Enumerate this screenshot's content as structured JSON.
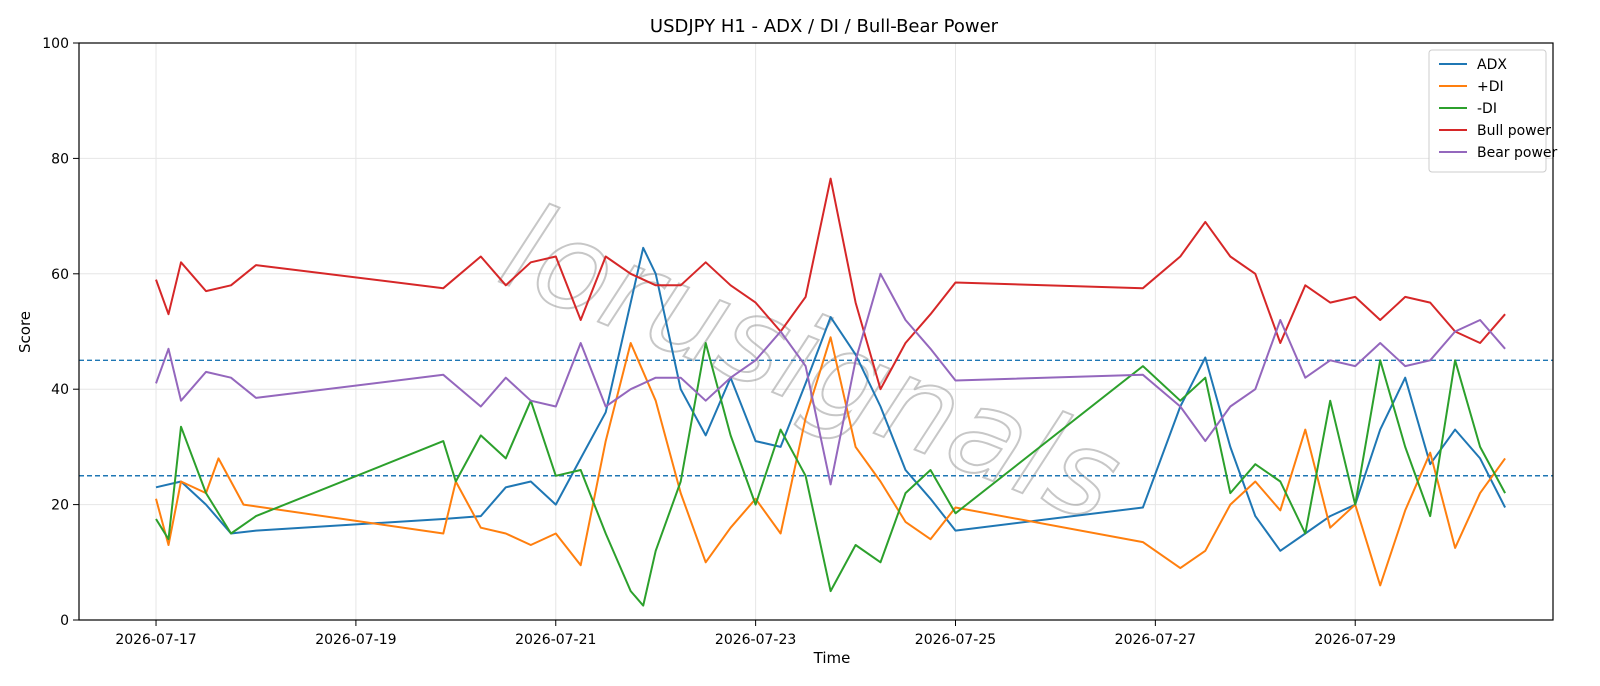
{
  "chart_data": {
    "type": "line",
    "title": "USDJPY H1 - ADX / DI / Bull-Bear Power",
    "xlabel": "Time",
    "ylabel": "Score",
    "ylim": [
      0,
      100
    ],
    "xlim": [
      "2026-07-16T05:30",
      "2026-07-30T23:30"
    ],
    "x_ticks": [
      "2026-07-17",
      "2026-07-19",
      "2026-07-21",
      "2026-07-23",
      "2026-07-25",
      "2026-07-27",
      "2026-07-29"
    ],
    "y_ticks": [
      0,
      20,
      40,
      60,
      80,
      100
    ],
    "grid": true,
    "legend": "top-right",
    "reference_lines": [
      45,
      25
    ],
    "watermark": "lorusignals",
    "series": [
      {
        "name": "ADX",
        "color": "#1f77b4",
        "points": [
          [
            "2026-07-17T00:00",
            23
          ],
          [
            "2026-07-17T06:00",
            24
          ],
          [
            "2026-07-17T12:00",
            20
          ],
          [
            "2026-07-17T18:00",
            15
          ],
          [
            "2026-07-18T00:00",
            15.5
          ],
          [
            "2026-07-19T21:00",
            17.5
          ],
          [
            "2026-07-20T06:00",
            18
          ],
          [
            "2026-07-20T12:00",
            23
          ],
          [
            "2026-07-20T18:00",
            24
          ],
          [
            "2026-07-21T00:00",
            20
          ],
          [
            "2026-07-21T06:00",
            28
          ],
          [
            "2026-07-21T12:00",
            36
          ],
          [
            "2026-07-21T18:00",
            55
          ],
          [
            "2026-07-21T21:00",
            64.5
          ],
          [
            "2026-07-22T00:00",
            60
          ],
          [
            "2026-07-22T06:00",
            40
          ],
          [
            "2026-07-22T12:00",
            32
          ],
          [
            "2026-07-22T18:00",
            42
          ],
          [
            "2026-07-23T00:00",
            31
          ],
          [
            "2026-07-23T06:00",
            30
          ],
          [
            "2026-07-23T12:00",
            41
          ],
          [
            "2026-07-23T18:00",
            52.5
          ],
          [
            "2026-07-24T00:00",
            46
          ],
          [
            "2026-07-24T06:00",
            37
          ],
          [
            "2026-07-24T12:00",
            26
          ],
          [
            "2026-07-24T18:00",
            21
          ],
          [
            "2026-07-25T00:00",
            15.5
          ],
          [
            "2026-07-26T21:00",
            19.5
          ],
          [
            "2026-07-27T06:00",
            37
          ],
          [
            "2026-07-27T12:00",
            45.5
          ],
          [
            "2026-07-27T18:00",
            30
          ],
          [
            "2026-07-28T00:00",
            18
          ],
          [
            "2026-07-28T06:00",
            12
          ],
          [
            "2026-07-28T12:00",
            15
          ],
          [
            "2026-07-28T18:00",
            18
          ],
          [
            "2026-07-29T00:00",
            20
          ],
          [
            "2026-07-29T06:00",
            33
          ],
          [
            "2026-07-29T12:00",
            42
          ],
          [
            "2026-07-29T18:00",
            27
          ],
          [
            "2026-07-30T00:00",
            33
          ],
          [
            "2026-07-30T06:00",
            28
          ],
          [
            "2026-07-30T12:00",
            19.5
          ]
        ]
      },
      {
        "name": "+DI",
        "color": "#ff7f0e",
        "points": [
          [
            "2026-07-17T00:00",
            21
          ],
          [
            "2026-07-17T03:00",
            13
          ],
          [
            "2026-07-17T06:00",
            24
          ],
          [
            "2026-07-17T12:00",
            22
          ],
          [
            "2026-07-17T15:00",
            28
          ],
          [
            "2026-07-17T21:00",
            20
          ],
          [
            "2026-07-19T21:00",
            15
          ],
          [
            "2026-07-20T00:00",
            24
          ],
          [
            "2026-07-20T06:00",
            16
          ],
          [
            "2026-07-20T12:00",
            15
          ],
          [
            "2026-07-20T18:00",
            13
          ],
          [
            "2026-07-21T00:00",
            15
          ],
          [
            "2026-07-21T06:00",
            9.5
          ],
          [
            "2026-07-21T12:00",
            31
          ],
          [
            "2026-07-21T18:00",
            48
          ],
          [
            "2026-07-22T00:00",
            38
          ],
          [
            "2026-07-22T06:00",
            22
          ],
          [
            "2026-07-22T12:00",
            10
          ],
          [
            "2026-07-22T18:00",
            16
          ],
          [
            "2026-07-23T00:00",
            21
          ],
          [
            "2026-07-23T06:00",
            15
          ],
          [
            "2026-07-23T12:00",
            35
          ],
          [
            "2026-07-23T18:00",
            49
          ],
          [
            "2026-07-24T00:00",
            30
          ],
          [
            "2026-07-24T06:00",
            24
          ],
          [
            "2026-07-24T12:00",
            17
          ],
          [
            "2026-07-24T18:00",
            14
          ],
          [
            "2026-07-25T00:00",
            19.5
          ],
          [
            "2026-07-26T21:00",
            13.5
          ],
          [
            "2026-07-27T06:00",
            9
          ],
          [
            "2026-07-27T12:00",
            12
          ],
          [
            "2026-07-27T18:00",
            20
          ],
          [
            "2026-07-28T00:00",
            24
          ],
          [
            "2026-07-28T06:00",
            19
          ],
          [
            "2026-07-28T12:00",
            33
          ],
          [
            "2026-07-28T18:00",
            16
          ],
          [
            "2026-07-29T00:00",
            20
          ],
          [
            "2026-07-29T06:00",
            6
          ],
          [
            "2026-07-29T12:00",
            19
          ],
          [
            "2026-07-29T18:00",
            29
          ],
          [
            "2026-07-30T00:00",
            12.5
          ],
          [
            "2026-07-30T06:00",
            22
          ],
          [
            "2026-07-30T12:00",
            28
          ]
        ]
      },
      {
        "name": "-DI",
        "color": "#2ca02c",
        "points": [
          [
            "2026-07-17T00:00",
            17.5
          ],
          [
            "2026-07-17T03:00",
            14
          ],
          [
            "2026-07-17T06:00",
            33.5
          ],
          [
            "2026-07-17T12:00",
            22
          ],
          [
            "2026-07-17T18:00",
            15
          ],
          [
            "2026-07-18T00:00",
            18
          ],
          [
            "2026-07-19T21:00",
            31
          ],
          [
            "2026-07-20T00:00",
            24
          ],
          [
            "2026-07-20T06:00",
            32
          ],
          [
            "2026-07-20T12:00",
            28
          ],
          [
            "2026-07-20T18:00",
            38
          ],
          [
            "2026-07-21T00:00",
            25
          ],
          [
            "2026-07-21T06:00",
            26
          ],
          [
            "2026-07-21T12:00",
            15
          ],
          [
            "2026-07-21T18:00",
            5
          ],
          [
            "2026-07-21T21:00",
            2.5
          ],
          [
            "2026-07-22T00:00",
            12
          ],
          [
            "2026-07-22T06:00",
            24
          ],
          [
            "2026-07-22T12:00",
            48
          ],
          [
            "2026-07-22T18:00",
            32
          ],
          [
            "2026-07-23T00:00",
            20
          ],
          [
            "2026-07-23T06:00",
            33
          ],
          [
            "2026-07-23T12:00",
            25
          ],
          [
            "2026-07-23T18:00",
            5
          ],
          [
            "2026-07-24T00:00",
            13
          ],
          [
            "2026-07-24T06:00",
            10
          ],
          [
            "2026-07-24T12:00",
            22
          ],
          [
            "2026-07-24T18:00",
            26
          ],
          [
            "2026-07-25T00:00",
            18.5
          ],
          [
            "2026-07-26T21:00",
            44
          ],
          [
            "2026-07-27T06:00",
            38
          ],
          [
            "2026-07-27T12:00",
            42
          ],
          [
            "2026-07-27T18:00",
            22
          ],
          [
            "2026-07-28T00:00",
            27
          ],
          [
            "2026-07-28T06:00",
            24
          ],
          [
            "2026-07-28T12:00",
            15
          ],
          [
            "2026-07-28T18:00",
            38
          ],
          [
            "2026-07-29T00:00",
            20
          ],
          [
            "2026-07-29T06:00",
            45
          ],
          [
            "2026-07-29T12:00",
            30
          ],
          [
            "2026-07-29T18:00",
            18
          ],
          [
            "2026-07-30T00:00",
            45
          ],
          [
            "2026-07-30T06:00",
            30
          ],
          [
            "2026-07-30T12:00",
            22
          ]
        ]
      },
      {
        "name": "Bull power",
        "color": "#d62728",
        "points": [
          [
            "2026-07-17T00:00",
            59
          ],
          [
            "2026-07-17T03:00",
            53
          ],
          [
            "2026-07-17T06:00",
            62
          ],
          [
            "2026-07-17T12:00",
            57
          ],
          [
            "2026-07-17T18:00",
            58
          ],
          [
            "2026-07-18T00:00",
            61.5
          ],
          [
            "2026-07-19T21:00",
            57.5
          ],
          [
            "2026-07-20T06:00",
            63
          ],
          [
            "2026-07-20T12:00",
            58
          ],
          [
            "2026-07-20T18:00",
            62
          ],
          [
            "2026-07-21T00:00",
            63
          ],
          [
            "2026-07-21T06:00",
            52
          ],
          [
            "2026-07-21T12:00",
            63
          ],
          [
            "2026-07-21T18:00",
            60
          ],
          [
            "2026-07-22T00:00",
            58
          ],
          [
            "2026-07-22T06:00",
            58
          ],
          [
            "2026-07-22T12:00",
            62
          ],
          [
            "2026-07-22T18:00",
            58
          ],
          [
            "2026-07-23T00:00",
            55
          ],
          [
            "2026-07-23T06:00",
            50
          ],
          [
            "2026-07-23T12:00",
            56
          ],
          [
            "2026-07-23T18:00",
            76.5
          ],
          [
            "2026-07-24T00:00",
            55
          ],
          [
            "2026-07-24T06:00",
            40
          ],
          [
            "2026-07-24T12:00",
            48
          ],
          [
            "2026-07-24T18:00",
            53
          ],
          [
            "2026-07-25T00:00",
            58.5
          ],
          [
            "2026-07-26T21:00",
            57.5
          ],
          [
            "2026-07-27T06:00",
            63
          ],
          [
            "2026-07-27T12:00",
            69
          ],
          [
            "2026-07-27T18:00",
            63
          ],
          [
            "2026-07-28T00:00",
            60
          ],
          [
            "2026-07-28T06:00",
            48
          ],
          [
            "2026-07-28T12:00",
            58
          ],
          [
            "2026-07-28T18:00",
            55
          ],
          [
            "2026-07-29T00:00",
            56
          ],
          [
            "2026-07-29T06:00",
            52
          ],
          [
            "2026-07-29T12:00",
            56
          ],
          [
            "2026-07-29T18:00",
            55
          ],
          [
            "2026-07-30T00:00",
            50
          ],
          [
            "2026-07-30T06:00",
            48
          ],
          [
            "2026-07-30T12:00",
            53
          ]
        ]
      },
      {
        "name": "Bear power",
        "color": "#9467bd",
        "points": [
          [
            "2026-07-17T00:00",
            41
          ],
          [
            "2026-07-17T03:00",
            47
          ],
          [
            "2026-07-17T06:00",
            38
          ],
          [
            "2026-07-17T12:00",
            43
          ],
          [
            "2026-07-17T18:00",
            42
          ],
          [
            "2026-07-18T00:00",
            38.5
          ],
          [
            "2026-07-19T21:00",
            42.5
          ],
          [
            "2026-07-20T06:00",
            37
          ],
          [
            "2026-07-20T12:00",
            42
          ],
          [
            "2026-07-20T18:00",
            38
          ],
          [
            "2026-07-21T00:00",
            37
          ],
          [
            "2026-07-21T06:00",
            48
          ],
          [
            "2026-07-21T12:00",
            37
          ],
          [
            "2026-07-21T18:00",
            40
          ],
          [
            "2026-07-22T00:00",
            42
          ],
          [
            "2026-07-22T06:00",
            42
          ],
          [
            "2026-07-22T12:00",
            38
          ],
          [
            "2026-07-22T18:00",
            42
          ],
          [
            "2026-07-23T00:00",
            45
          ],
          [
            "2026-07-23T06:00",
            50
          ],
          [
            "2026-07-23T12:00",
            44
          ],
          [
            "2026-07-23T18:00",
            23.5
          ],
          [
            "2026-07-24T00:00",
            45
          ],
          [
            "2026-07-24T06:00",
            60
          ],
          [
            "2026-07-24T12:00",
            52
          ],
          [
            "2026-07-24T18:00",
            47
          ],
          [
            "2026-07-25T00:00",
            41.5
          ],
          [
            "2026-07-26T21:00",
            42.5
          ],
          [
            "2026-07-27T06:00",
            37
          ],
          [
            "2026-07-27T12:00",
            31
          ],
          [
            "2026-07-27T18:00",
            37
          ],
          [
            "2026-07-28T00:00",
            40
          ],
          [
            "2026-07-28T06:00",
            52
          ],
          [
            "2026-07-28T12:00",
            42
          ],
          [
            "2026-07-28T18:00",
            45
          ],
          [
            "2026-07-29T00:00",
            44
          ],
          [
            "2026-07-29T06:00",
            48
          ],
          [
            "2026-07-29T12:00",
            44
          ],
          [
            "2026-07-29T18:00",
            45
          ],
          [
            "2026-07-30T00:00",
            50
          ],
          [
            "2026-07-30T06:00",
            52
          ],
          [
            "2026-07-30T12:00",
            47
          ]
        ]
      }
    ]
  }
}
